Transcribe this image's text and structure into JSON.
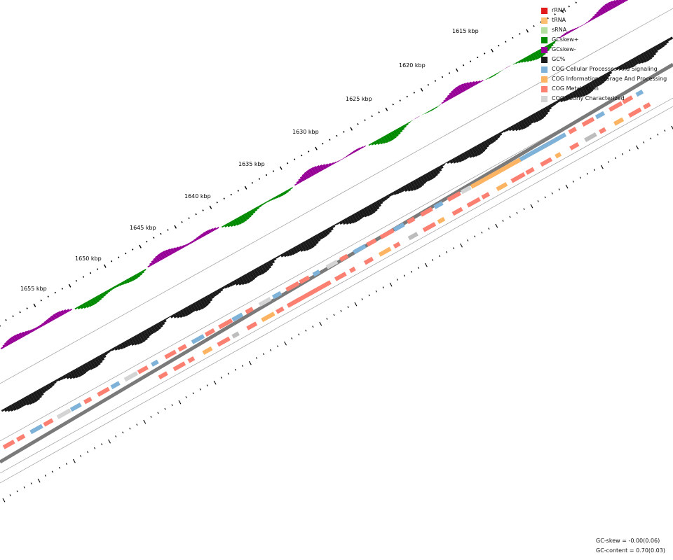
{
  "tick_labels": [
    "1615 kbp",
    "1620 kbp",
    "1625 kbp",
    "1630 kbp",
    "1635 kbp",
    "1640 kbp",
    "1645 kbp",
    "1650 kbp",
    "1655 kbp"
  ],
  "legend": [
    {
      "label": "rRNA",
      "color": "#e31a1c"
    },
    {
      "label": "tRNA",
      "color": "#fdbf6f"
    },
    {
      "label": "sRNA",
      "color": "#b2dfa0"
    },
    {
      "label": "GCskew+",
      "color": "#008a00"
    },
    {
      "label": "GCskew-",
      "color": "#960096"
    },
    {
      "label": "GC%",
      "color": "#1a1a1a"
    },
    {
      "label": "COG Cellular Processes And Signaling",
      "color": "#7fb2d8"
    },
    {
      "label": "COG Information Storage And Processing",
      "color": "#fdb462"
    },
    {
      "label": "COG Metabolism",
      "color": "#fb8072"
    },
    {
      "label": "COG Poorly Characterized",
      "color": "#d4d4d4"
    }
  ],
  "stats": {
    "gc_skew": "GC-skew = -0.00(0.06)",
    "gc_content": "GC-content = 0.70(0.03)"
  }
}
